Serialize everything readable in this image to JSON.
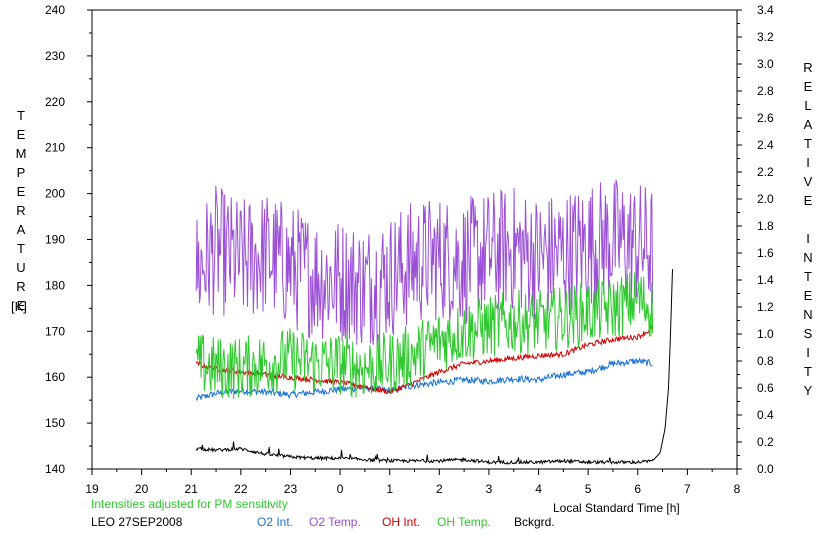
{
  "chart_data": {
    "type": "line",
    "ylabel": "TEMPERATURE",
    "ylabel_unit": "[K]",
    "y2label": "RELATIVE INTENSITY",
    "xlabel": "Local Standard Time [h]",
    "xlim": [
      19,
      32
    ],
    "ylim": [
      140,
      240
    ],
    "y2lim": [
      0.0,
      3.4
    ],
    "x_tick_labels": [
      "19",
      "20",
      "21",
      "22",
      "23",
      "0",
      "1",
      "2",
      "3",
      "4",
      "5",
      "6",
      "7",
      "8"
    ],
    "y_tick_labels": [
      "140",
      "150",
      "160",
      "170",
      "180",
      "190",
      "200",
      "210",
      "220",
      "230",
      "240"
    ],
    "y2_tick_labels": [
      "0.0",
      "0.2",
      "0.4",
      "0.6",
      "0.8",
      "1.0",
      "1.2",
      "1.4",
      "1.6",
      "1.8",
      "2.0",
      "2.2",
      "2.4",
      "2.6",
      "2.8",
      "3.0",
      "3.2",
      "3.4"
    ],
    "grid": false,
    "note": "Intensities adjusted for PM sensitivity",
    "station": "LEO 27SEP2008",
    "series": [
      {
        "name": "O2 Int.",
        "color": "#1a73d4",
        "axis": "right",
        "x": [
          21.1,
          21.5,
          22.0,
          22.5,
          23.0,
          23.5,
          24.0,
          24.5,
          25.0,
          25.5,
          26.0,
          26.5,
          27.0,
          27.5,
          28.0,
          28.5,
          29.0,
          29.5,
          30.0,
          30.3
        ],
        "y": [
          0.52,
          0.56,
          0.58,
          0.57,
          0.55,
          0.57,
          0.59,
          0.6,
          0.58,
          0.62,
          0.64,
          0.66,
          0.65,
          0.67,
          0.66,
          0.7,
          0.72,
          0.78,
          0.8,
          0.78
        ]
      },
      {
        "name": "O2 Temp.",
        "color": "#9b4fd6",
        "axis": "left",
        "x": [
          21.1,
          21.5,
          22.0,
          22.5,
          23.0,
          23.5,
          24.0,
          24.5,
          25.0,
          25.5,
          26.0,
          26.5,
          27.0,
          27.5,
          28.0,
          28.5,
          29.0,
          29.5,
          30.0,
          30.3
        ],
        "y": [
          183,
          188,
          185,
          187,
          184,
          182,
          181,
          180,
          182,
          185,
          186,
          185,
          187,
          188,
          186,
          187,
          189,
          190,
          189,
          188
        ]
      },
      {
        "name": "OH Int.",
        "color": "#d00000",
        "axis": "right",
        "x": [
          21.1,
          21.5,
          22.0,
          22.5,
          23.0,
          23.5,
          24.0,
          24.5,
          25.0,
          25.5,
          26.0,
          26.5,
          27.0,
          27.5,
          28.0,
          28.5,
          29.0,
          29.5,
          30.0,
          30.3
        ],
        "y": [
          0.78,
          0.74,
          0.72,
          0.7,
          0.68,
          0.66,
          0.64,
          0.61,
          0.57,
          0.64,
          0.72,
          0.78,
          0.8,
          0.82,
          0.84,
          0.85,
          0.92,
          0.96,
          0.98,
          1.04
        ]
      },
      {
        "name": "OH Temp.",
        "color": "#2ec92e",
        "axis": "left",
        "x": [
          21.1,
          21.5,
          22.0,
          22.5,
          23.0,
          23.5,
          24.0,
          24.5,
          25.0,
          25.5,
          26.0,
          26.5,
          27.0,
          27.5,
          28.0,
          28.5,
          29.0,
          29.5,
          30.0,
          30.3
        ],
        "y": [
          163,
          162,
          162,
          163,
          164,
          163,
          163,
          162,
          163,
          165,
          168,
          170,
          171,
          172,
          172,
          173,
          174,
          175,
          177,
          175
        ]
      },
      {
        "name": "Bckgrd.",
        "color": "#000000",
        "axis": "right",
        "x": [
          21.1,
          21.5,
          22.0,
          22.5,
          23.0,
          23.5,
          24.0,
          24.5,
          25.0,
          25.5,
          26.0,
          26.5,
          27.0,
          27.5,
          28.0,
          28.5,
          29.0,
          29.5,
          30.0,
          30.3,
          30.45,
          30.55,
          30.62,
          30.66,
          30.7
        ],
        "y": [
          0.15,
          0.14,
          0.15,
          0.11,
          0.09,
          0.08,
          0.08,
          0.07,
          0.06,
          0.06,
          0.06,
          0.07,
          0.05,
          0.05,
          0.05,
          0.06,
          0.05,
          0.05,
          0.05,
          0.06,
          0.12,
          0.3,
          0.6,
          1.0,
          1.48
        ]
      }
    ]
  }
}
